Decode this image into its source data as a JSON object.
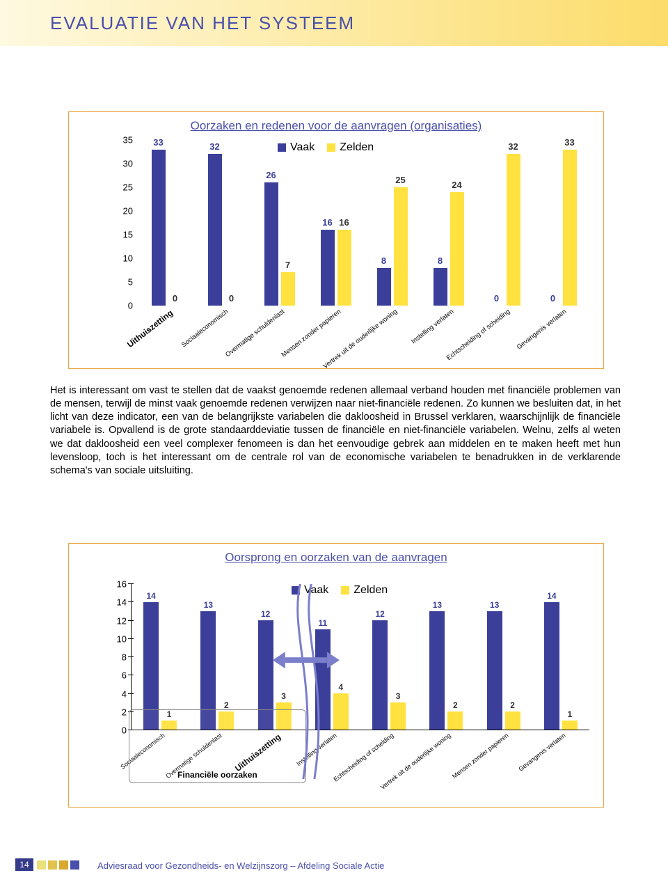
{
  "page_title": "EVALUATIE VAN HET SYSTEEM",
  "colors": {
    "vaak": "#3b3f99",
    "zelden": "#ffe240",
    "title": "#4a4faa",
    "box_border": "#e8a640",
    "accent_strip_start": "#fef9e0",
    "accent_strip_end": "#fcdc6a",
    "arrow": "#7a7ecb"
  },
  "chart1": {
    "type": "bar",
    "title": "Oorzaken en redenen voor de aanvragen (organisaties)",
    "legend": {
      "vaak": "Vaak",
      "zelden": "Zelden"
    },
    "ymax": 35,
    "ytick_step": 5,
    "yticks": [
      0,
      5,
      10,
      15,
      20,
      25,
      30,
      35
    ],
    "categories": [
      {
        "label": "Uithuiszetting",
        "bold": true,
        "vaak": 33,
        "zelden": 0
      },
      {
        "label": "Sociaaleconomisch",
        "bold": false,
        "vaak": 32,
        "zelden": 0
      },
      {
        "label": "Overmatige schuldenlast",
        "bold": false,
        "vaak": 26,
        "zelden": 7
      },
      {
        "label": "Mensen zonder papieren",
        "bold": false,
        "vaak": 16,
        "zelden": 16
      },
      {
        "label": "Vertrek uit de ouderlijke woning",
        "bold": false,
        "vaak": 8,
        "zelden": 25
      },
      {
        "label": "Instelling verlaten",
        "bold": false,
        "vaak": 8,
        "zelden": 24
      },
      {
        "label": "Echtscheiding of scheiding",
        "bold": false,
        "vaak": 0,
        "zelden": 32
      },
      {
        "label": "Gevangenis verlaten",
        "bold": false,
        "vaak": 0,
        "zelden": 33
      }
    ]
  },
  "paragraph": "Het is interessant om vast te stellen dat de vaakst genoemde redenen allemaal verband houden met financiële problemen van de mensen, terwijl de minst vaak genoemde redenen verwijzen naar niet-financiële redenen. Zo kunnen we besluiten dat, in het licht van deze indicator, een van de belangrijkste variabelen die dakloosheid in Brussel verklaren, waarschijnlijk de financiële variabele is. Opvallend is de grote standaarddeviatie tussen de financiële en niet-financiële variabelen. Welnu, zelfs al weten we dat dakloosheid een veel complexer fenomeen is dan het eenvoudige gebrek aan middelen en te maken heeft met hun levensloop, toch is het interessant om de centrale rol van de economische variabelen te benadrukken in de verklarende schema's van sociale uitsluiting.",
  "chart2": {
    "type": "bar",
    "title": "Oorsprong en oorzaken van de aanvragen",
    "legend": {
      "vaak": "Vaak",
      "zelden": "Zelden"
    },
    "ymax": 16,
    "ytick_step": 2,
    "yticks": [
      0,
      2,
      4,
      6,
      8,
      10,
      12,
      14,
      16
    ],
    "fin_box_label": "Financiële oorzaken",
    "fin_box_span": [
      0,
      3
    ],
    "categories": [
      {
        "label": "Sociaaleconomisch",
        "bold": false,
        "vaak": 14,
        "zelden": 1
      },
      {
        "label": "Overmatige schuldenlast",
        "bold": false,
        "vaak": 13,
        "zelden": 2
      },
      {
        "label": "Uithuiszetting",
        "bold": true,
        "vaak": 12,
        "zelden": 3
      },
      {
        "label": "Instelling verlaten",
        "bold": false,
        "vaak": 11,
        "zelden": 4
      },
      {
        "label": "Echtscheiding of scheiding",
        "bold": false,
        "vaak": 12,
        "zelden": 3
      },
      {
        "label": "Vertrek uit de ouderlijke woning",
        "bold": false,
        "vaak": 13,
        "zelden": 2
      },
      {
        "label": "Mensen zonder papieren",
        "bold": false,
        "vaak": 13,
        "zelden": 2
      },
      {
        "label": "Gevangenis verlaten",
        "bold": false,
        "vaak": 14,
        "zelden": 1
      }
    ]
  },
  "footer": {
    "page_number": "14",
    "text": "Adviesraad voor Gezondheids- en Welzijnszorg – Afdeling Sociale Actie",
    "pager_colors": [
      "#e9e07a",
      "#e2c24c",
      "#d9a62e",
      "#4a4faa"
    ]
  }
}
